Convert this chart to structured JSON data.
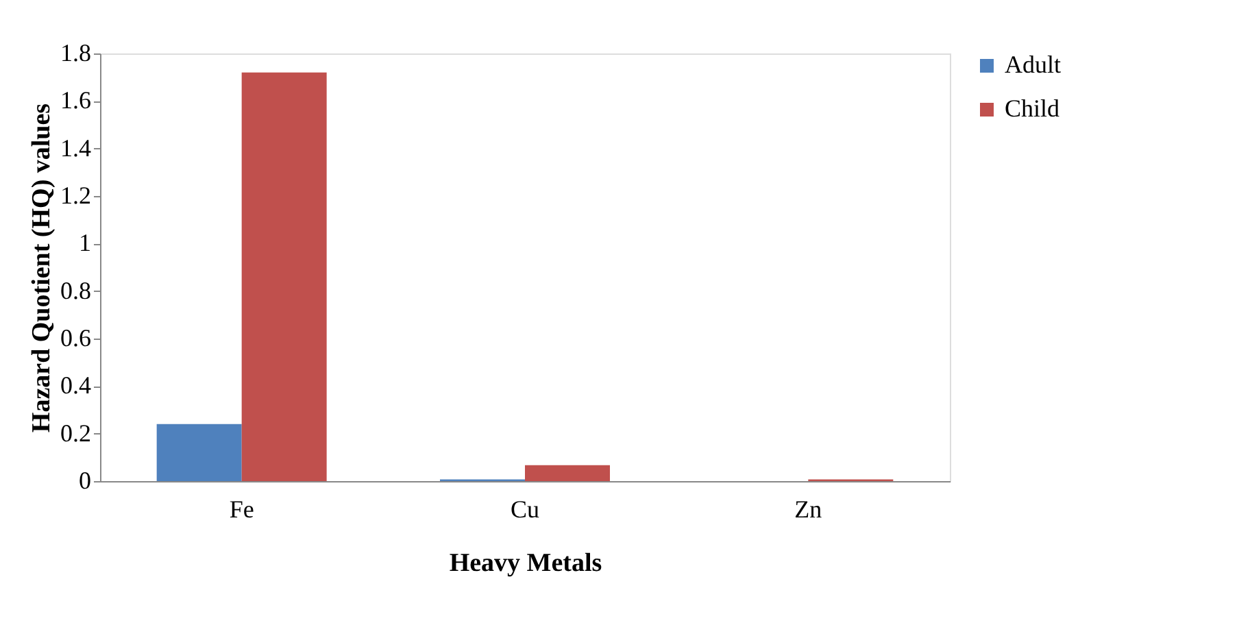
{
  "chart_data": {
    "type": "bar",
    "xlabel": "Heavy Metals",
    "ylabel": "Hazard Quotient (HQ) values",
    "categories": [
      "Fe",
      "Cu",
      "Zn"
    ],
    "series": [
      {
        "name": "Adult",
        "color": "#4f81bd",
        "values": [
          0.24,
          0.007,
          null
        ]
      },
      {
        "name": "Child",
        "color": "#c0504d",
        "values": [
          1.72,
          0.067,
          0.007
        ]
      }
    ],
    "ylim": [
      0,
      1.8
    ],
    "yticks": [
      0,
      0.2,
      0.4,
      0.6,
      0.8,
      1,
      1.2,
      1.4,
      1.6,
      1.8
    ],
    "grid": false,
    "legend": "right"
  }
}
